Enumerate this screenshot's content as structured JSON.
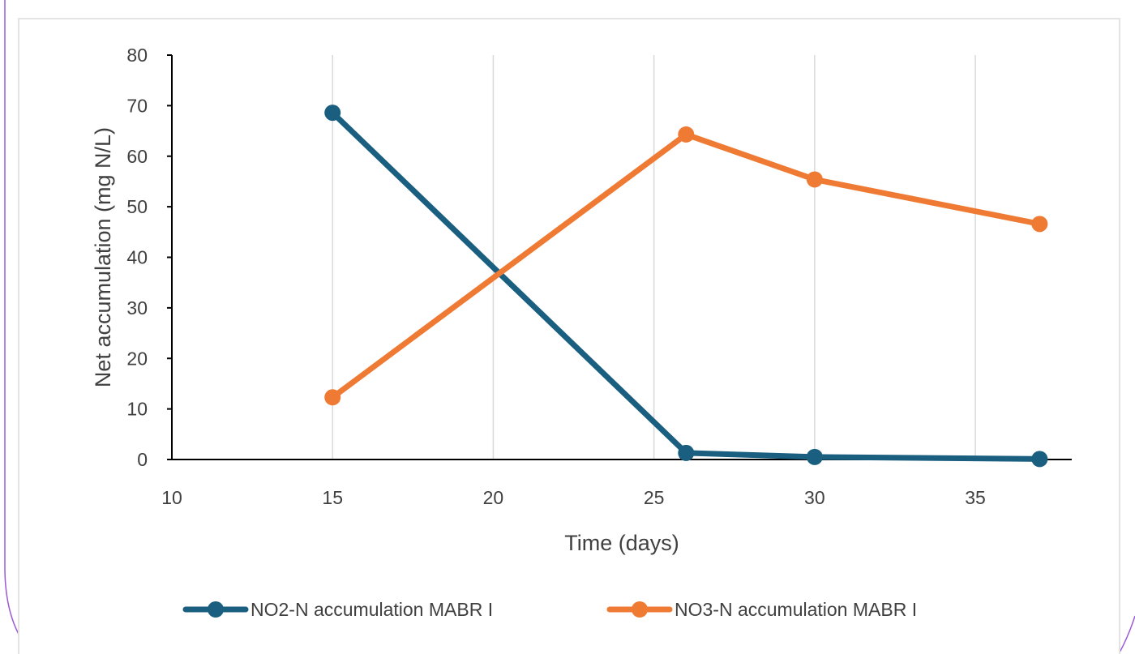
{
  "chart_data": {
    "type": "line",
    "title": "",
    "xlabel": "Time (days)",
    "ylabel": "Net accumulation  (mg N/L)",
    "xlim": [
      10,
      38
    ],
    "ylim": [
      0,
      80
    ],
    "x_ticks": [
      10,
      15,
      20,
      25,
      30,
      35
    ],
    "y_ticks": [
      0,
      10,
      20,
      30,
      40,
      50,
      60,
      70,
      80
    ],
    "grid": "vertical",
    "legend_position": "bottom",
    "series": [
      {
        "name": "NO2-N accumulation  MABR I",
        "color": "#1a5e80",
        "x": [
          15,
          26,
          30,
          37
        ],
        "y": [
          68.6,
          1.3,
          0.5,
          0.1
        ]
      },
      {
        "name": "NO3-N accumulation  MABR I",
        "color": "#ef7a33",
        "x": [
          15,
          26,
          30,
          37
        ],
        "y": [
          12.3,
          64.3,
          55.4,
          46.6
        ]
      }
    ]
  },
  "colors": {
    "frame_accent": "#9b59d6",
    "grid": "#d9d9d9",
    "axis": "#000000"
  }
}
